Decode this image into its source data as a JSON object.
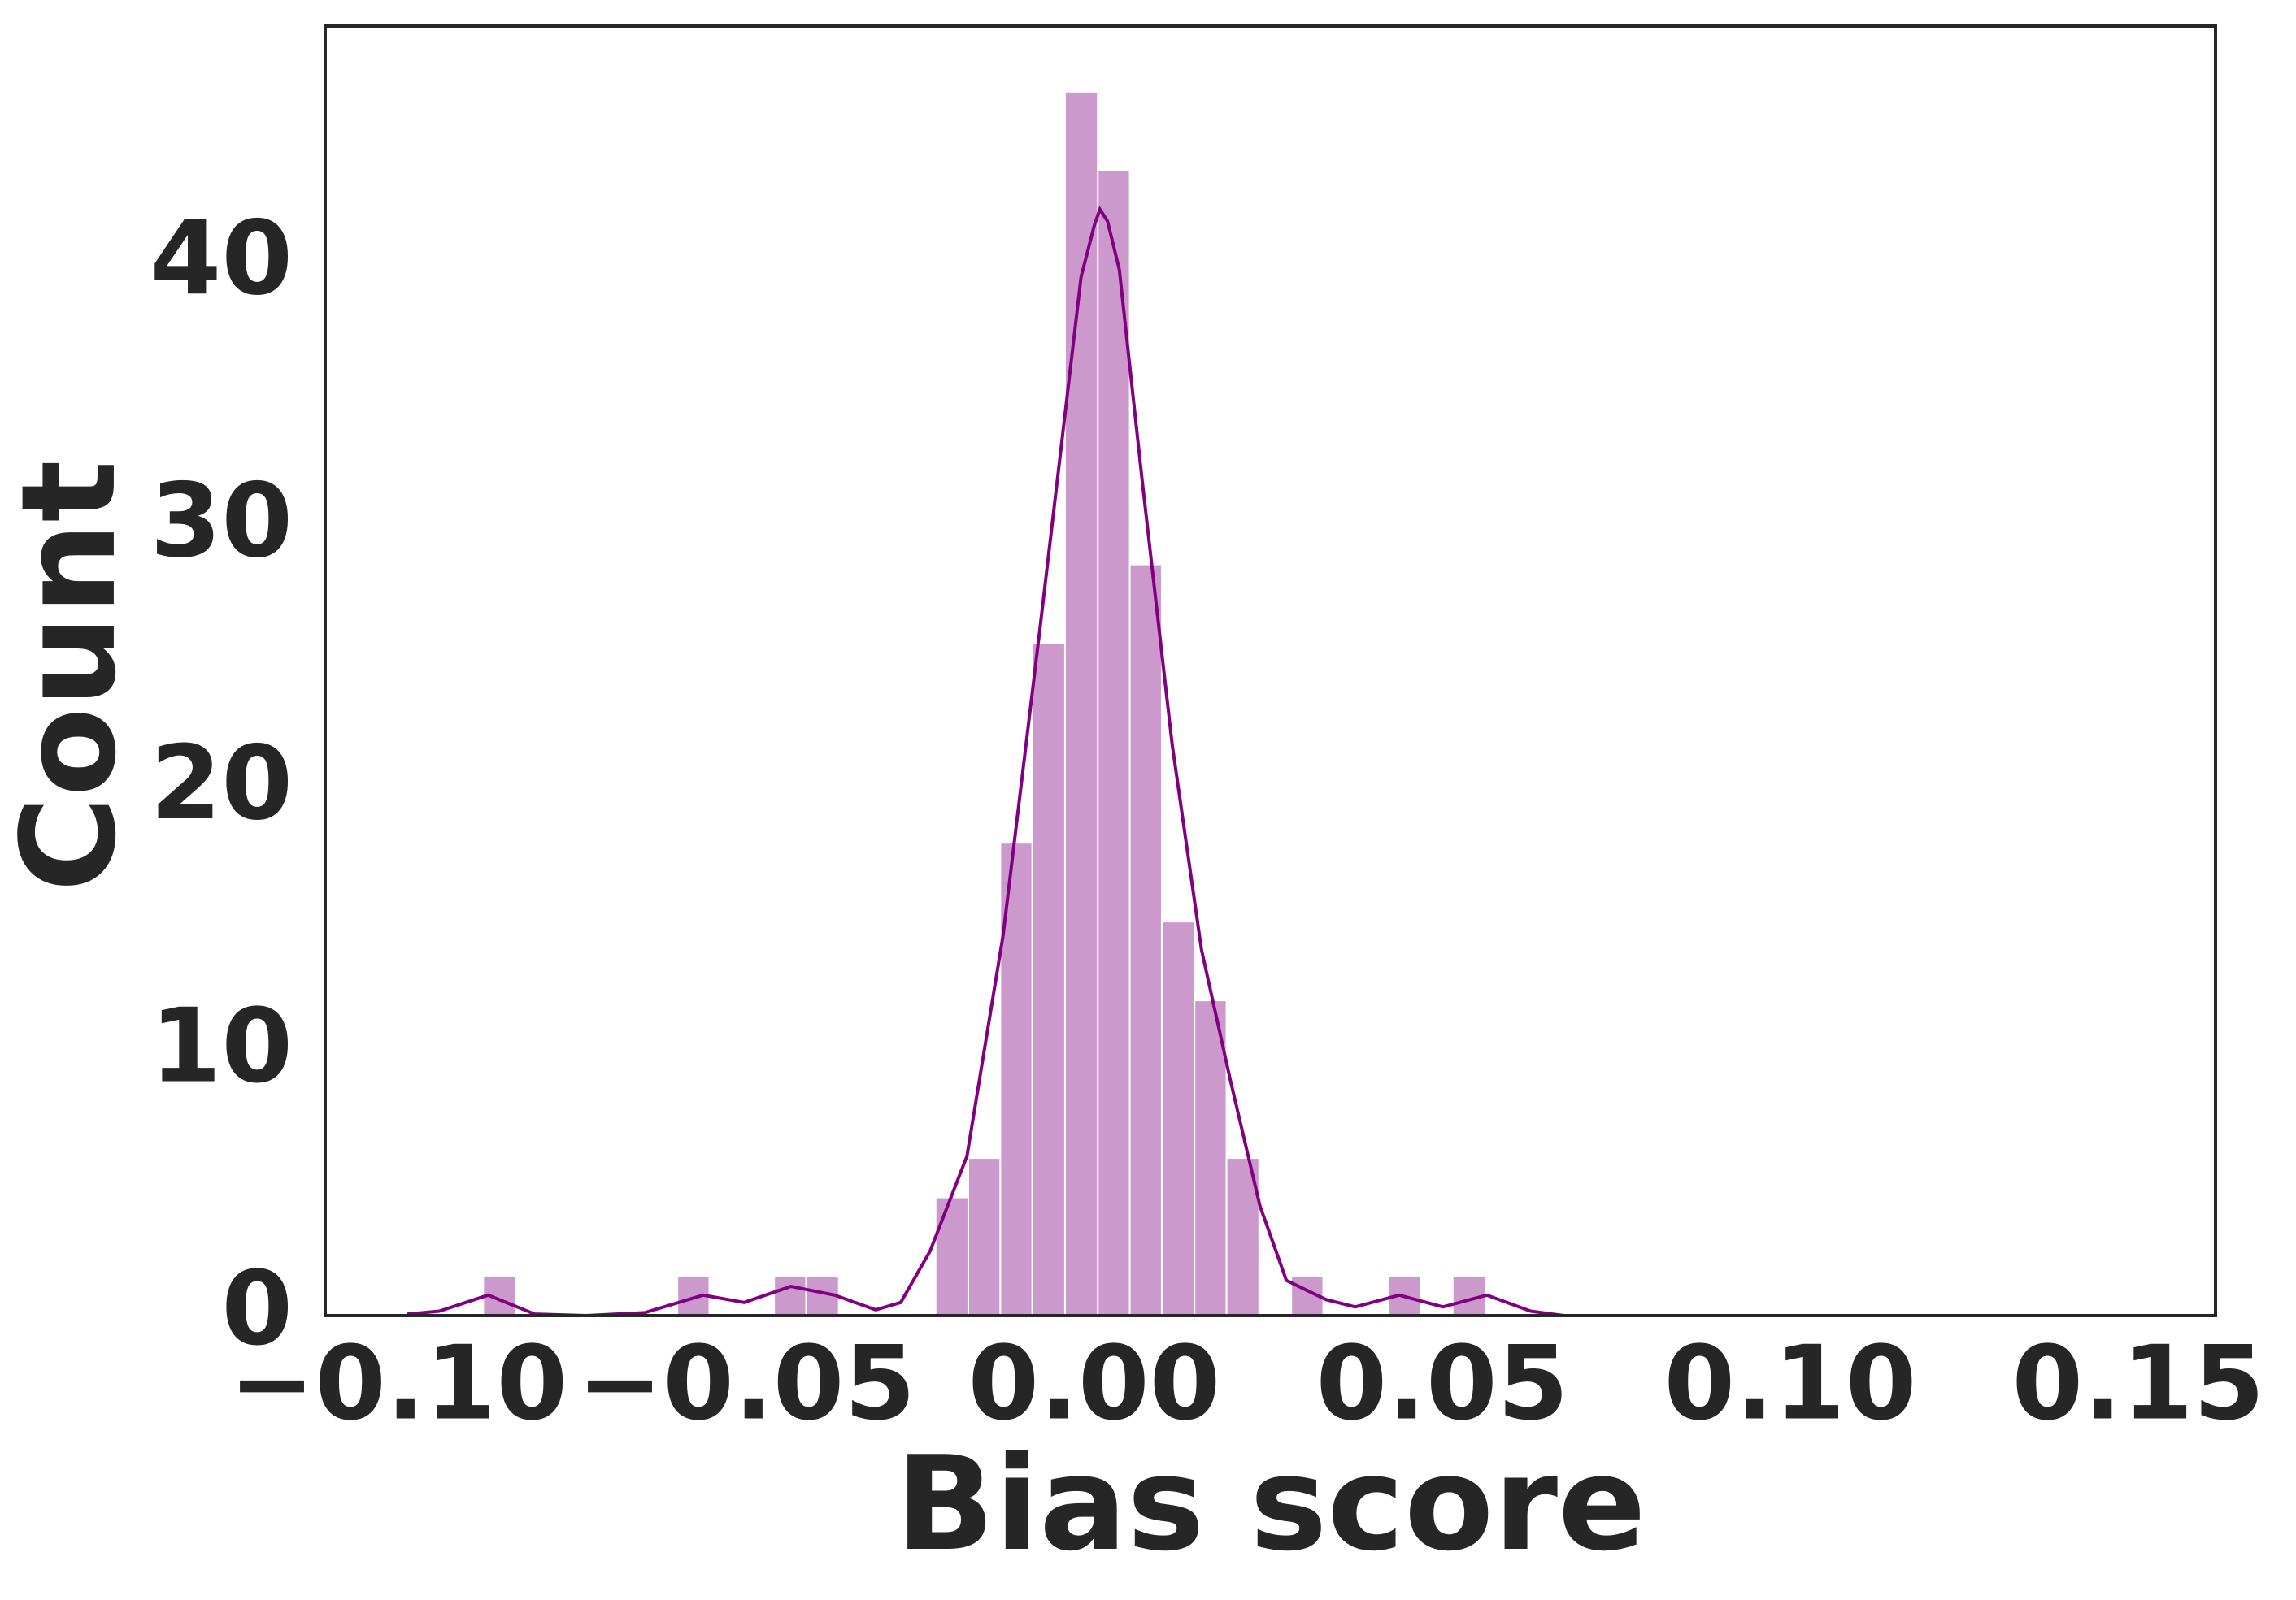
{
  "chart_data": {
    "type": "histogram",
    "x_label": "Bias score",
    "y_label": "Count",
    "bins": [
      -0.0878,
      -0.0831,
      -0.0785,
      -0.0739,
      -0.0692,
      -0.0646,
      -0.0599,
      -0.0553,
      -0.0506,
      -0.046,
      -0.0414,
      -0.0367,
      -0.0321,
      -0.0274,
      -0.0228,
      -0.0181,
      -0.0135,
      -0.0089,
      -0.0042,
      0.0005,
      0.0051,
      0.0097,
      0.0144,
      0.019,
      0.0237,
      0.0283,
      0.0329,
      0.0376,
      0.0422,
      0.0469,
      0.0515,
      0.0562
    ],
    "values": [
      1.5,
      0,
      0,
      0,
      0,
      0,
      1.5,
      0,
      0,
      1.5,
      1.5,
      0,
      0,
      0,
      4.5,
      6,
      18,
      25.6,
      46.6,
      43.6,
      28.6,
      15,
      12,
      6,
      0,
      1.5,
      0,
      0,
      1.5,
      0,
      1.5
    ],
    "color": "#cc99cc",
    "edgecolor": "#ffffff",
    "kde": {
      "color": "#800080",
      "x": [
        -0.0987,
        -0.0941,
        -0.0871,
        -0.0804,
        -0.073,
        -0.0646,
        -0.0562,
        -0.0503,
        -0.0436,
        -0.0373,
        -0.0314,
        -0.0278,
        -0.0236,
        -0.0183,
        -0.0131,
        -0.0078,
        -0.0019,
        0.0,
        0.0008,
        0.0019,
        0.0036,
        0.0069,
        0.0112,
        0.0154,
        0.0196,
        0.0238,
        0.0276,
        0.0333,
        0.0375,
        0.0438,
        0.0501,
        0.0564,
        0.0627,
        0.0675
      ],
      "y": [
        0.06,
        0.17,
        0.78,
        0.06,
        0,
        0.11,
        0.78,
        0.5,
        1.11,
        0.78,
        0.22,
        0.5,
        2.45,
        6.07,
        14.48,
        26.18,
        39.55,
        41.5,
        42.12,
        41.67,
        39.83,
        31.75,
        21.73,
        13.93,
        8.91,
        4.18,
        1.34,
        0.61,
        0.33,
        0.78,
        0.33,
        0.78,
        0.17,
        0
      ]
    },
    "xlim": [
      -0.1105,
      0.1611
    ],
    "ylim": [
      0,
      49.1
    ],
    "xticks": [
      {
        "value": -0.1,
        "label": "−0.10"
      },
      {
        "value": -0.05,
        "label": "−0.05"
      },
      {
        "value": 0,
        "label": "0.00"
      },
      0.05,
      {
        "value": 0.1,
        "label": "0.10"
      },
      {
        "value": 0.15,
        "label": "0.15"
      }
    ],
    "yticks": [
      0,
      10,
      20,
      30,
      40
    ],
    "grid": false
  }
}
